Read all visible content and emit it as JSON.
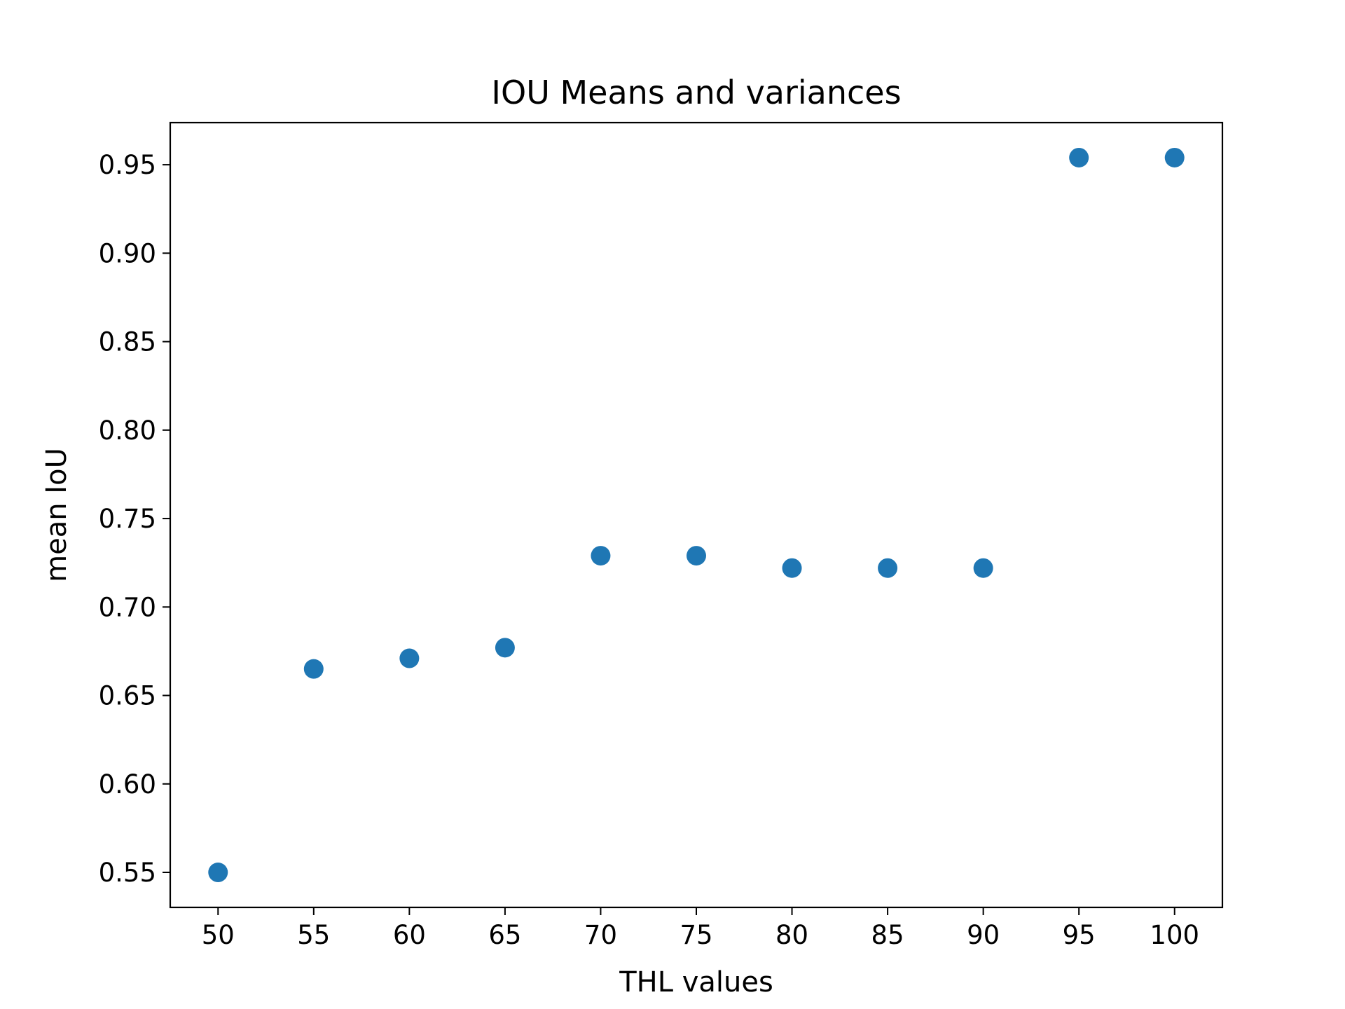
{
  "chart_data": {
    "type": "scatter",
    "title": "IOU Means and variances",
    "xlabel": "THL values",
    "ylabel": "mean IoU",
    "x": [
      50,
      55,
      60,
      65,
      70,
      75,
      80,
      85,
      90,
      95,
      100
    ],
    "series": [
      {
        "values": [
          0.55,
          0.665,
          0.671,
          0.677,
          0.729,
          0.729,
          0.722,
          0.722,
          0.722,
          0.954,
          0.954
        ],
        "color": "#1f77b4"
      }
    ],
    "xlim": [
      47.5,
      102.5
    ],
    "ylim": [
      0.5302,
      0.9738
    ],
    "xticks": [
      "50",
      "55",
      "60",
      "65",
      "70",
      "75",
      "80",
      "85",
      "90",
      "95",
      "100"
    ],
    "yticks": [
      "0.55",
      "0.60",
      "0.65",
      "0.70",
      "0.75",
      "0.80",
      "0.85",
      "0.90",
      "0.95"
    ],
    "grid": false,
    "legend": "none"
  }
}
